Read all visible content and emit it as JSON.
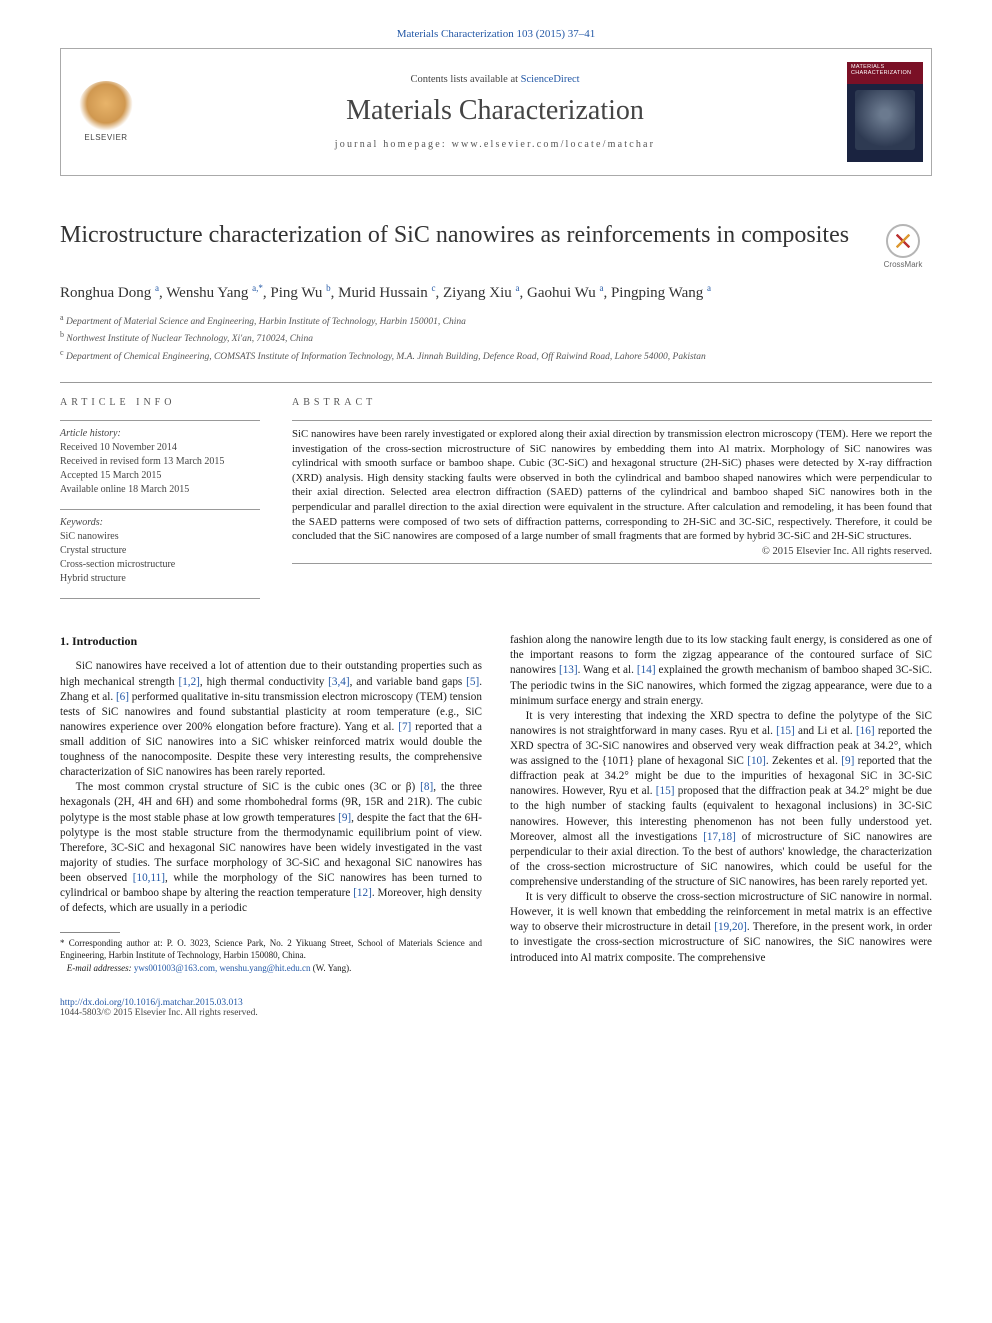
{
  "citation": "Materials Characterization 103 (2015) 37–41",
  "header": {
    "contents_prefix": "Contents lists available at ",
    "contents_link": "ScienceDirect",
    "journal": "Materials Characterization",
    "homepage_label": "journal homepage: ",
    "homepage_url": "www.elsevier.com/locate/matchar",
    "publisher": "ELSEVIER",
    "cover_title": "MATERIALS CHARACTERIZATION"
  },
  "crossmark": "CrossMark",
  "title": "Microstructure characterization of SiC nanowires as reinforcements in composites",
  "authors_html": "Ronghua Dong <sup>a</sup>, Wenshu Yang <sup>a,</sup><sup class=\"star\">*</sup>, Ping Wu <sup>b</sup>, Murid Hussain <sup>c</sup>, Ziyang Xiu <sup>a</sup>, Gaohui Wu <sup>a</sup>, Pingping Wang <sup>a</sup>",
  "affiliations": [
    {
      "marker": "a",
      "text": "Department of Material Science and Engineering, Harbin Institute of Technology, Harbin 150001, China"
    },
    {
      "marker": "b",
      "text": "Northwest Institute of Nuclear Technology, Xi'an, 710024, China"
    },
    {
      "marker": "c",
      "text": "Department of Chemical Engineering, COMSATS Institute of Information Technology, M.A. Jinnah Building, Defence Road, Off Raiwind Road, Lahore 54000, Pakistan"
    }
  ],
  "article_info": {
    "label": "ARTICLE INFO",
    "history_label": "Article history:",
    "history": [
      "Received 10 November 2014",
      "Received in revised form 13 March 2015",
      "Accepted 15 March 2015",
      "Available online 18 March 2015"
    ],
    "keywords_label": "Keywords:",
    "keywords": [
      "SiC nanowires",
      "Crystal structure",
      "Cross-section microstructure",
      "Hybrid structure"
    ]
  },
  "abstract": {
    "label": "ABSTRACT",
    "text": "SiC nanowires have been rarely investigated or explored along their axial direction by transmission electron microscopy (TEM). Here we report the investigation of the cross-section microstructure of SiC nanowires by embedding them into Al matrix. Morphology of SiC nanowires was cylindrical with smooth surface or bamboo shape. Cubic (3C-SiC) and hexagonal structure (2H-SiC) phases were detected by X-ray diffraction (XRD) analysis. High density stacking faults were observed in both the cylindrical and bamboo shaped nanowires which were perpendicular to their axial direction. Selected area electron diffraction (SAED) patterns of the cylindrical and bamboo shaped SiC nanowires both in the perpendicular and parallel direction to the axial direction were equivalent in the structure. After calculation and remodeling, it has been found that the SAED patterns were composed of two sets of diffraction patterns, corresponding to 2H-SiC and 3C-SiC, respectively. Therefore, it could be concluded that the SiC nanowires are composed of a large number of small fragments that are formed by hybrid 3C-SiC and 2H-SiC structures.",
    "copyright": "© 2015 Elsevier Inc. All rights reserved."
  },
  "body": {
    "section_heading": "1. Introduction",
    "paragraphs": [
      "SiC nanowires have received a lot of attention due to their outstanding properties such as high mechanical strength <span class=\"ref\">[1,2]</span>, high thermal conductivity <span class=\"ref\">[3,4]</span>, and variable band gaps <span class=\"ref\">[5]</span>. Zhang et al. <span class=\"ref\">[6]</span> performed qualitative in-situ transmission electron microscopy (TEM) tension tests of SiC nanowires and found substantial plasticity at room temperature (e.g., SiC nanowires experience over 200% elongation before fracture). Yang et al. <span class=\"ref\">[7]</span> reported that a small addition of SiC nanowires into a SiC whisker reinforced matrix would double the toughness of the nanocomposite. Despite these very interesting results, the comprehensive characterization of SiC nanowires has been rarely reported.",
      "The most common crystal structure of SiC is the cubic ones (3C or β) <span class=\"ref\">[8]</span>, the three hexagonals (2H, 4H and 6H) and some rhombohedral forms (9R, 15R and 21R). The cubic polytype is the most stable phase at low growth temperatures <span class=\"ref\">[9]</span>, despite the fact that the 6H-polytype is the most stable structure from the thermodynamic equilibrium point of view. Therefore, 3C-SiC and hexagonal SiC nanowires have been widely investigated in the vast majority of studies. The surface morphology of 3C-SiC and hexagonal SiC nanowires has been observed <span class=\"ref\">[10,11]</span>, while the morphology of the SiC nanowires has been turned to cylindrical or bamboo shape by altering the reaction temperature <span class=\"ref\">[12]</span>. Moreover, high density of defects, which are usually in a periodic",
      "fashion along the nanowire length due to its low stacking fault energy, is considered as one of the important reasons to form the zigzag appearance of the contoured surface of SiC nanowires <span class=\"ref\">[13]</span>. Wang et al. <span class=\"ref\">[14]</span> explained the growth mechanism of bamboo shaped 3C-SiC. The periodic twins in the SiC nanowires, which formed the zigzag appearance, were due to a minimum surface energy and strain energy.",
      "It is very interesting that indexing the XRD spectra to define the polytype of the SiC nanowires is not straightforward in many cases. Ryu et al. <span class=\"ref\">[15]</span> and Li et al. <span class=\"ref\">[16]</span> reported the XRD spectra of 3C-SiC nanowires and observed very weak diffraction peak at 34.2°, which was assigned to the {101̄1} plane of hexagonal SiC <span class=\"ref\">[10]</span>. Zekentes et al. <span class=\"ref\">[9]</span> reported that the diffraction peak at 34.2° might be due to the impurities of hexagonal SiC in 3C-SiC nanowires. However, Ryu et al. <span class=\"ref\">[15]</span> proposed that the diffraction peak at 34.2° might be due to the high number of stacking faults (equivalent to hexagonal inclusions) in 3C-SiC nanowires. However, this interesting phenomenon has not been fully understood yet. Moreover, almost all the investigations <span class=\"ref\">[17,18]</span> of microstructure of SiC nanowires are perpendicular to their axial direction. To the best of authors' knowledge, the characterization of the cross-section microstructure of SiC nanowires, which could be useful for the comprehensive understanding of the structure of SiC nanowires, has been rarely reported yet.",
      "It is very difficult to observe the cross-section microstructure of SiC nanowire in normal. However, it is well known that embedding the reinforcement in metal matrix is an effective way to observe their microstructure in detail <span class=\"ref\">[19,20]</span>. Therefore, in the present work, in order to investigate the cross-section microstructure of SiC nanowires, the SiC nanowires were introduced into Al matrix composite. The comprehensive"
    ]
  },
  "footnote": {
    "marker": "*",
    "text": "Corresponding author at: P. O. 3023, Science Park, No. 2 Yikuang Street, School of Materials Science and Engineering, Harbin Institute of Technology, Harbin 150080, China.",
    "email_label": "E-mail addresses:",
    "emails": "yws001003@163.com, wenshu.yang@hit.edu.cn",
    "email_suffix": "(W. Yang)."
  },
  "footer": {
    "doi": "http://dx.doi.org/10.1016/j.matchar.2015.03.013",
    "issn_line": "1044-5803/© 2015 Elsevier Inc. All rights reserved."
  },
  "colors": {
    "link": "#2358a6",
    "text": "#222",
    "rule": "#999"
  }
}
